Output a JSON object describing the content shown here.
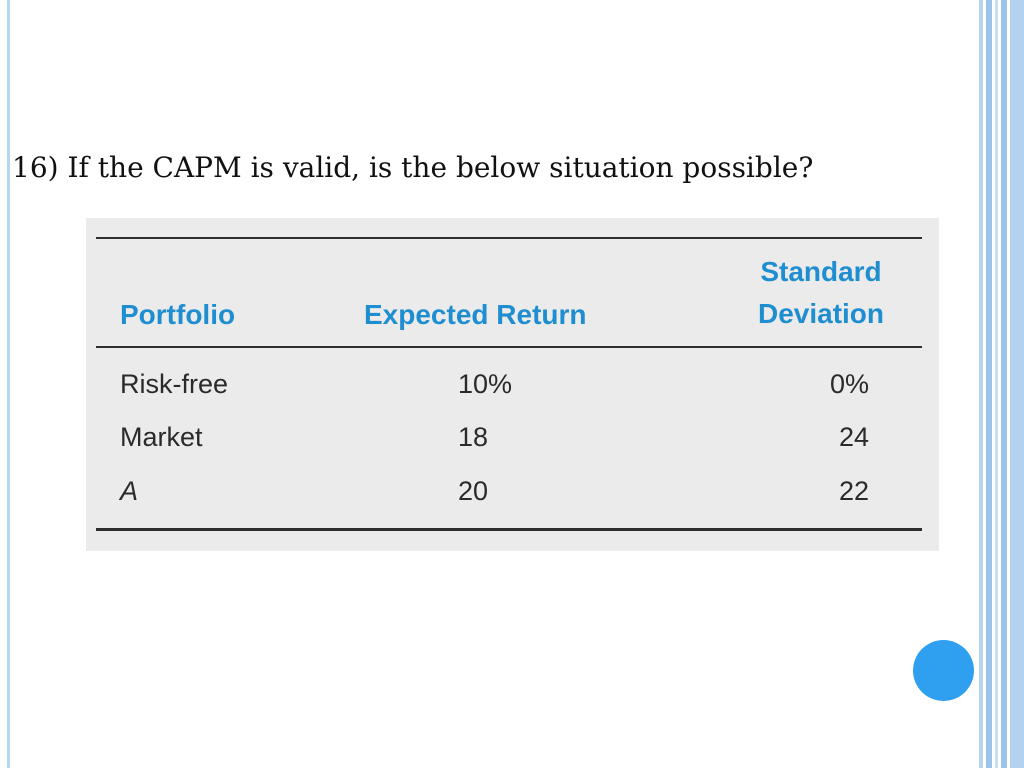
{
  "slide": {
    "question": "16) If the CAPM is valid, is the below situation possible?"
  },
  "table": {
    "headers": {
      "portfolio": "Portfolio",
      "expected_return": "Expected Return",
      "sd_line1": "Standard",
      "sd_line2": "Deviation"
    },
    "rows": [
      {
        "portfolio": "Risk-free",
        "expected_return": "10%",
        "sd": "0%"
      },
      {
        "portfolio": "Market",
        "expected_return": "18",
        "sd": "24"
      },
      {
        "portfolio": "A",
        "expected_return": "20",
        "sd": "22"
      }
    ]
  },
  "colors": {
    "header": "#1f8ed0",
    "accent_circle": "#2f9ff0",
    "frame_band": "#9cc4ea"
  }
}
